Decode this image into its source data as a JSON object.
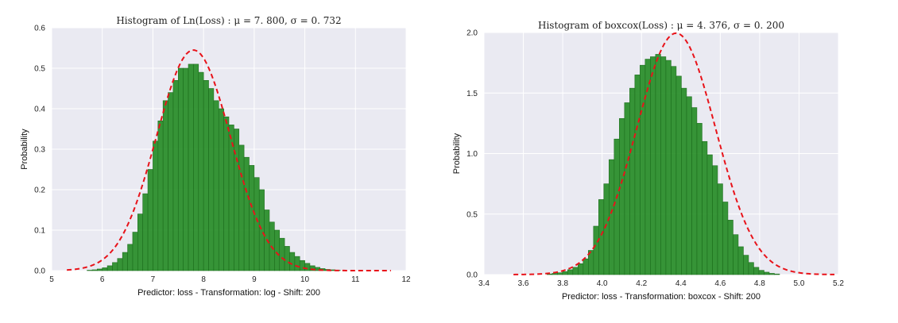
{
  "style": {
    "plot_bg": "#EAEAF2",
    "grid": "#FFFFFF",
    "bar_fill": "#228B22",
    "bar_edge": "#1E6E1E",
    "curve": "#E8131A"
  },
  "chart_data": [
    {
      "type": "bar",
      "title": "Histogram of Ln(Loss) : μ = 7. 800,  σ = 0. 732",
      "xlabel": "Predictor: loss - Transformation: log  - Shift: 200",
      "ylabel": "Probability",
      "xlim": [
        5,
        12
      ],
      "ylim": [
        0,
        0.6
      ],
      "xticks": [
        "5",
        "6",
        "7",
        "8",
        "9",
        "10",
        "11",
        "12"
      ],
      "yticks": [
        "0.0",
        "0.1",
        "0.2",
        "0.3",
        "0.4",
        "0.5",
        "0.6"
      ],
      "grid": true,
      "bins": {
        "start": 5.7,
        "width": 0.1,
        "values": [
          0.001,
          0.002,
          0.004,
          0.007,
          0.012,
          0.02,
          0.03,
          0.045,
          0.065,
          0.095,
          0.14,
          0.19,
          0.25,
          0.32,
          0.37,
          0.42,
          0.44,
          0.47,
          0.5,
          0.5,
          0.51,
          0.51,
          0.49,
          0.47,
          0.45,
          0.42,
          0.4,
          0.38,
          0.36,
          0.35,
          0.31,
          0.28,
          0.26,
          0.23,
          0.2,
          0.15,
          0.12,
          0.1,
          0.08,
          0.06,
          0.045,
          0.035,
          0.025,
          0.018,
          0.012,
          0.008,
          0.005,
          0.003,
          0.002,
          0.001
        ]
      },
      "normal_fit": {
        "mu": 7.8,
        "sigma": 0.732,
        "x_range": [
          5.3,
          11.7
        ]
      }
    },
    {
      "type": "bar",
      "title": "Histogram of boxcox(Loss) : μ = 4. 376,  σ = 0. 200",
      "xlabel": "Predictor: loss - Transformation: boxcox  - Shift: 200",
      "ylabel": "Probability",
      "xlim": [
        3.4,
        5.2
      ],
      "ylim": [
        0,
        2.0
      ],
      "xticks": [
        "3.4",
        "3.6",
        "3.8",
        "4.0",
        "4.2",
        "4.4",
        "4.6",
        "4.8",
        "5.0",
        "5.2"
      ],
      "yticks": [
        "0.0",
        "0.5",
        "1.0",
        "1.5",
        "2.0"
      ],
      "grid": true,
      "bins": {
        "start": 3.72,
        "width": 0.02625,
        "values": [
          0.005,
          0.01,
          0.015,
          0.025,
          0.04,
          0.06,
          0.09,
          0.13,
          0.2,
          0.4,
          0.62,
          0.75,
          0.95,
          1.12,
          1.29,
          1.42,
          1.54,
          1.65,
          1.73,
          1.78,
          1.8,
          1.82,
          1.8,
          1.77,
          1.72,
          1.64,
          1.54,
          1.47,
          1.38,
          1.25,
          1.1,
          0.99,
          0.9,
          0.75,
          0.6,
          0.45,
          0.33,
          0.23,
          0.16,
          0.1,
          0.06,
          0.035,
          0.02,
          0.01,
          0.005
        ]
      },
      "normal_fit": {
        "mu": 4.376,
        "sigma": 0.2,
        "x_range": [
          3.55,
          5.18
        ]
      }
    }
  ]
}
